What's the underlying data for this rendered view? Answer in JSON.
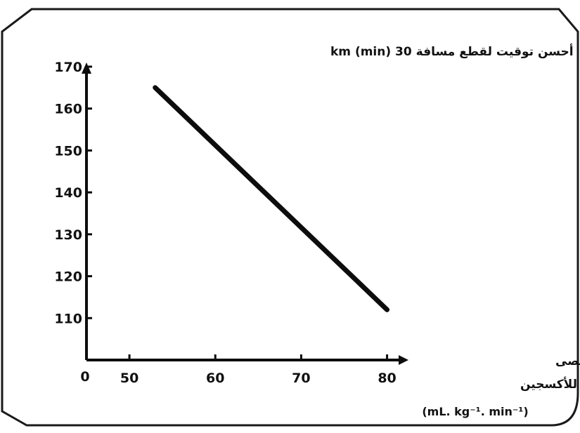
{
  "chart_data": {
    "type": "line",
    "title": "",
    "ylabel": "أحسن توقيت لقطع مسافة 30 km (min)",
    "xlabel_lines": [
      "الحجم الأقصى",
      "للأكسجين",
      "(mL. kg⁻¹. min⁻¹)"
    ],
    "xlim": [
      45,
      82
    ],
    "ylim": [
      100,
      170
    ],
    "x_ticks": [
      {
        "value": 50,
        "label": "50"
      },
      {
        "value": 60,
        "label": "60"
      },
      {
        "value": 70,
        "label": "70"
      },
      {
        "value": 80,
        "label": "80"
      }
    ],
    "x_origin_label": "0",
    "y_ticks": [
      {
        "value": 110,
        "label": "110"
      },
      {
        "value": 120,
        "label": "120"
      },
      {
        "value": 130,
        "label": "130"
      },
      {
        "value": 140,
        "label": "140"
      },
      {
        "value": 150,
        "label": "150"
      },
      {
        "value": 160,
        "label": "160"
      },
      {
        "value": 170,
        "label": "170"
      }
    ],
    "series": [
      {
        "x": [
          53,
          80
        ],
        "y": [
          165,
          112
        ]
      }
    ],
    "grid": false,
    "colors": {
      "line": "#0d0d0d",
      "axis": "#0d0d0d",
      "frame": "#1a1a1a"
    }
  }
}
